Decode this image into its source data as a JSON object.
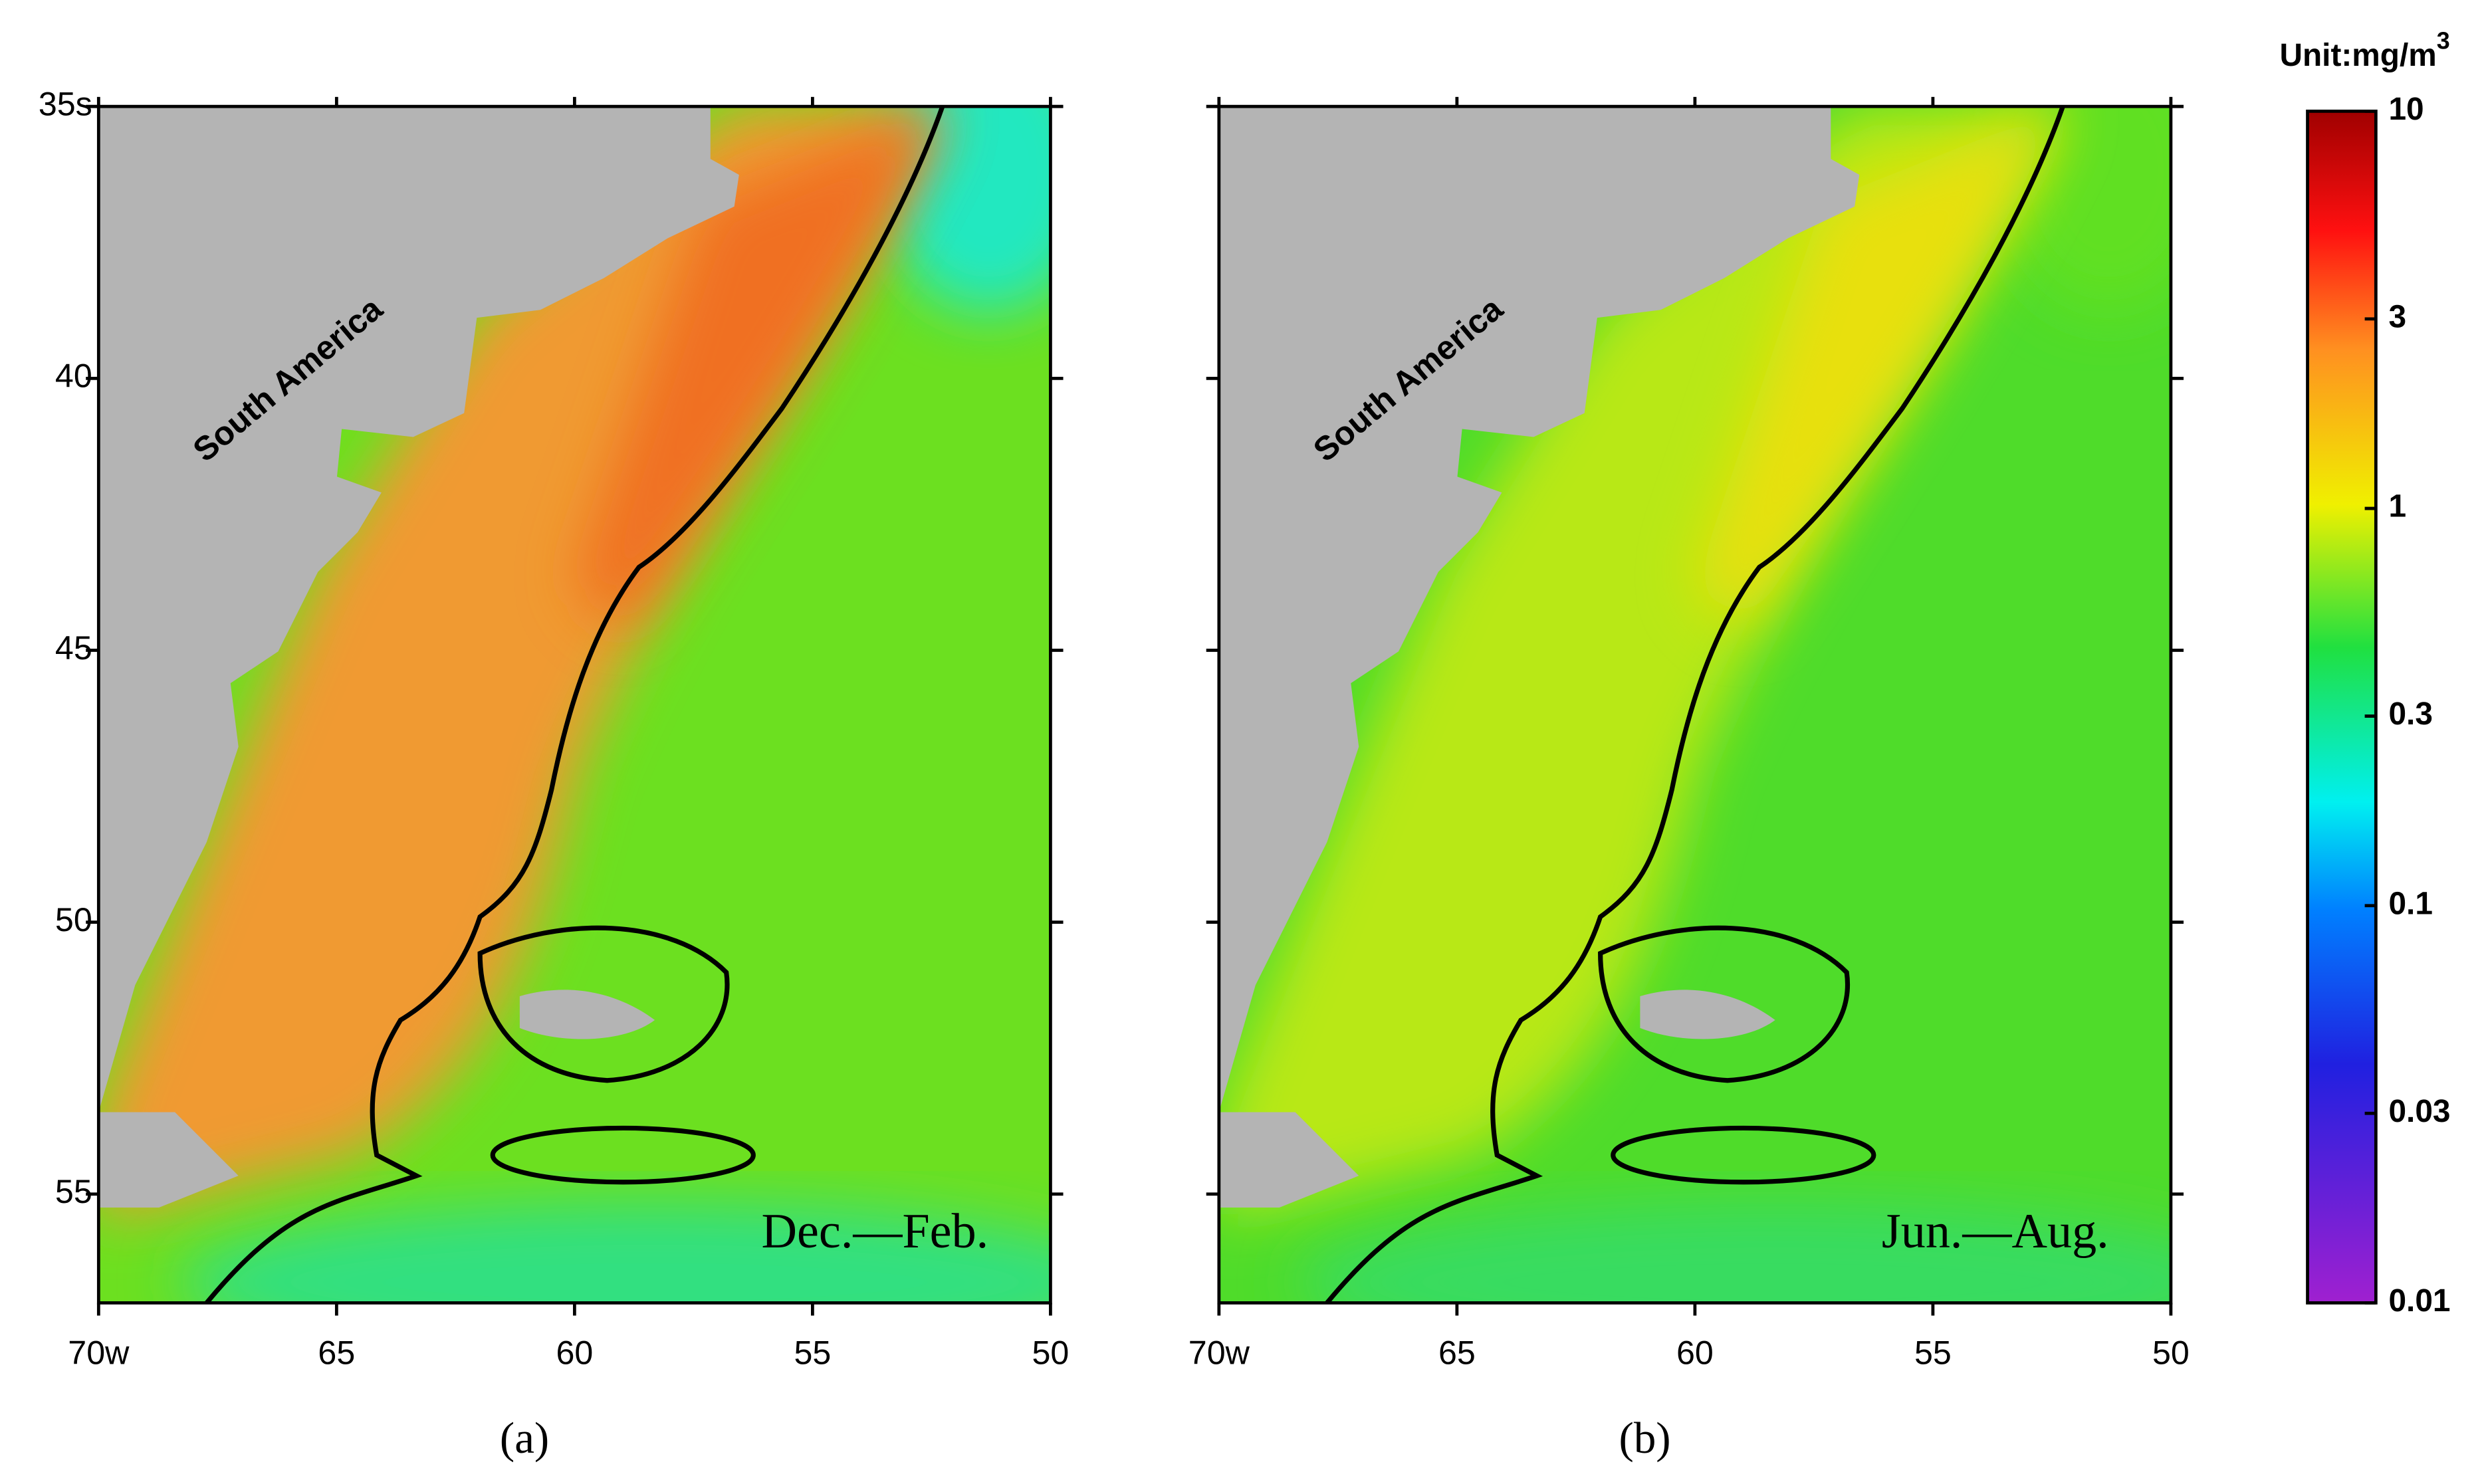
{
  "unit": {
    "text": "Unit:mg/m",
    "sup": "3"
  },
  "colorbar": {
    "scale": "log",
    "range": [
      0.01,
      10
    ],
    "ticks": [
      10,
      3,
      1,
      0.3,
      0.1,
      0.03,
      0.01
    ]
  },
  "axes": {
    "xlim": [
      70,
      50
    ],
    "xticks": [
      {
        "value": 70,
        "label": "70w"
      },
      65,
      60,
      55,
      50
    ],
    "ylim": [
      35,
      57
    ],
    "yticks": [
      {
        "value": 35,
        "label": "35s"
      },
      40,
      45,
      50,
      55
    ]
  },
  "panels": [
    {
      "label": "(a)",
      "season": "Dec.—Feb.",
      "region": "South America"
    },
    {
      "label": "(b)",
      "season": "Jun.—Aug.",
      "region": "South America"
    }
  ]
}
